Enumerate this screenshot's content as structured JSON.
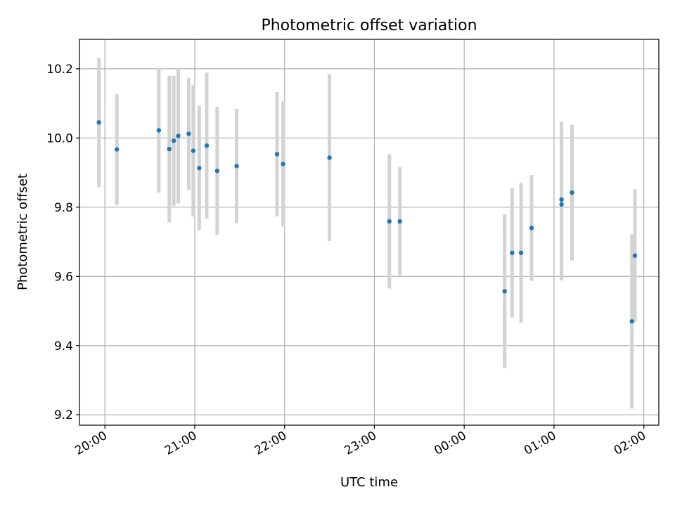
{
  "chart_data": {
    "type": "scatter",
    "title": "Photometric offset variation",
    "xlabel": "UTC time",
    "ylabel": "Photometric offset",
    "grid": true,
    "colors": {
      "point": "#1f77b4",
      "errorbar": "#d3d3d3"
    },
    "x_ticks": [
      "20:00",
      "21:00",
      "22:00",
      "23:00",
      "00:00",
      "01:00",
      "02:00"
    ],
    "y_ticks": [
      "9.2",
      "9.4",
      "9.6",
      "9.8",
      "10.0",
      "10.2"
    ],
    "xlim": [
      "19:43",
      "02:10"
    ],
    "ylim": [
      9.17,
      10.285
    ],
    "series": [
      {
        "points": [
          {
            "x": "19:56",
            "y": 10.045,
            "err": 0.187
          },
          {
            "x": "20:08",
            "y": 9.967,
            "err": 0.16
          },
          {
            "x": "20:36",
            "y": 10.022,
            "err": 0.18
          },
          {
            "x": "20:43",
            "y": 9.968,
            "err": 0.212
          },
          {
            "x": "20:46",
            "y": 9.992,
            "err": 0.188
          },
          {
            "x": "20:49",
            "y": 10.006,
            "err": 0.195
          },
          {
            "x": "20:56",
            "y": 10.012,
            "err": 0.162
          },
          {
            "x": "20:59",
            "y": 9.963,
            "err": 0.19
          },
          {
            "x": "21:03",
            "y": 9.913,
            "err": 0.18
          },
          {
            "x": "21:08",
            "y": 9.978,
            "err": 0.211
          },
          {
            "x": "21:15",
            "y": 9.905,
            "err": 0.185
          },
          {
            "x": "21:28",
            "y": 9.919,
            "err": 0.165
          },
          {
            "x": "21:55",
            "y": 9.953,
            "err": 0.18
          },
          {
            "x": "21:59",
            "y": 9.925,
            "err": 0.181
          },
          {
            "x": "22:30",
            "y": 9.943,
            "err": 0.241
          },
          {
            "x": "23:10",
            "y": 9.759,
            "err": 0.194
          },
          {
            "x": "23:17",
            "y": 9.759,
            "err": 0.156
          },
          {
            "x": "00:27",
            "y": 9.557,
            "err": 0.222
          },
          {
            "x": "00:32",
            "y": 9.668,
            "err": 0.187
          },
          {
            "x": "00:38",
            "y": 9.668,
            "err": 0.202
          },
          {
            "x": "00:45",
            "y": 9.74,
            "err": 0.153
          },
          {
            "x": "01:05",
            "y": 9.822,
            "err": 0.225
          },
          {
            "x": "01:05",
            "y": 9.808,
            "err": 0.22
          },
          {
            "x": "01:12",
            "y": 9.842,
            "err": 0.196
          },
          {
            "x": "01:52",
            "y": 9.47,
            "err": 0.252
          },
          {
            "x": "01:54",
            "y": 9.66,
            "err": 0.192
          }
        ]
      }
    ]
  }
}
